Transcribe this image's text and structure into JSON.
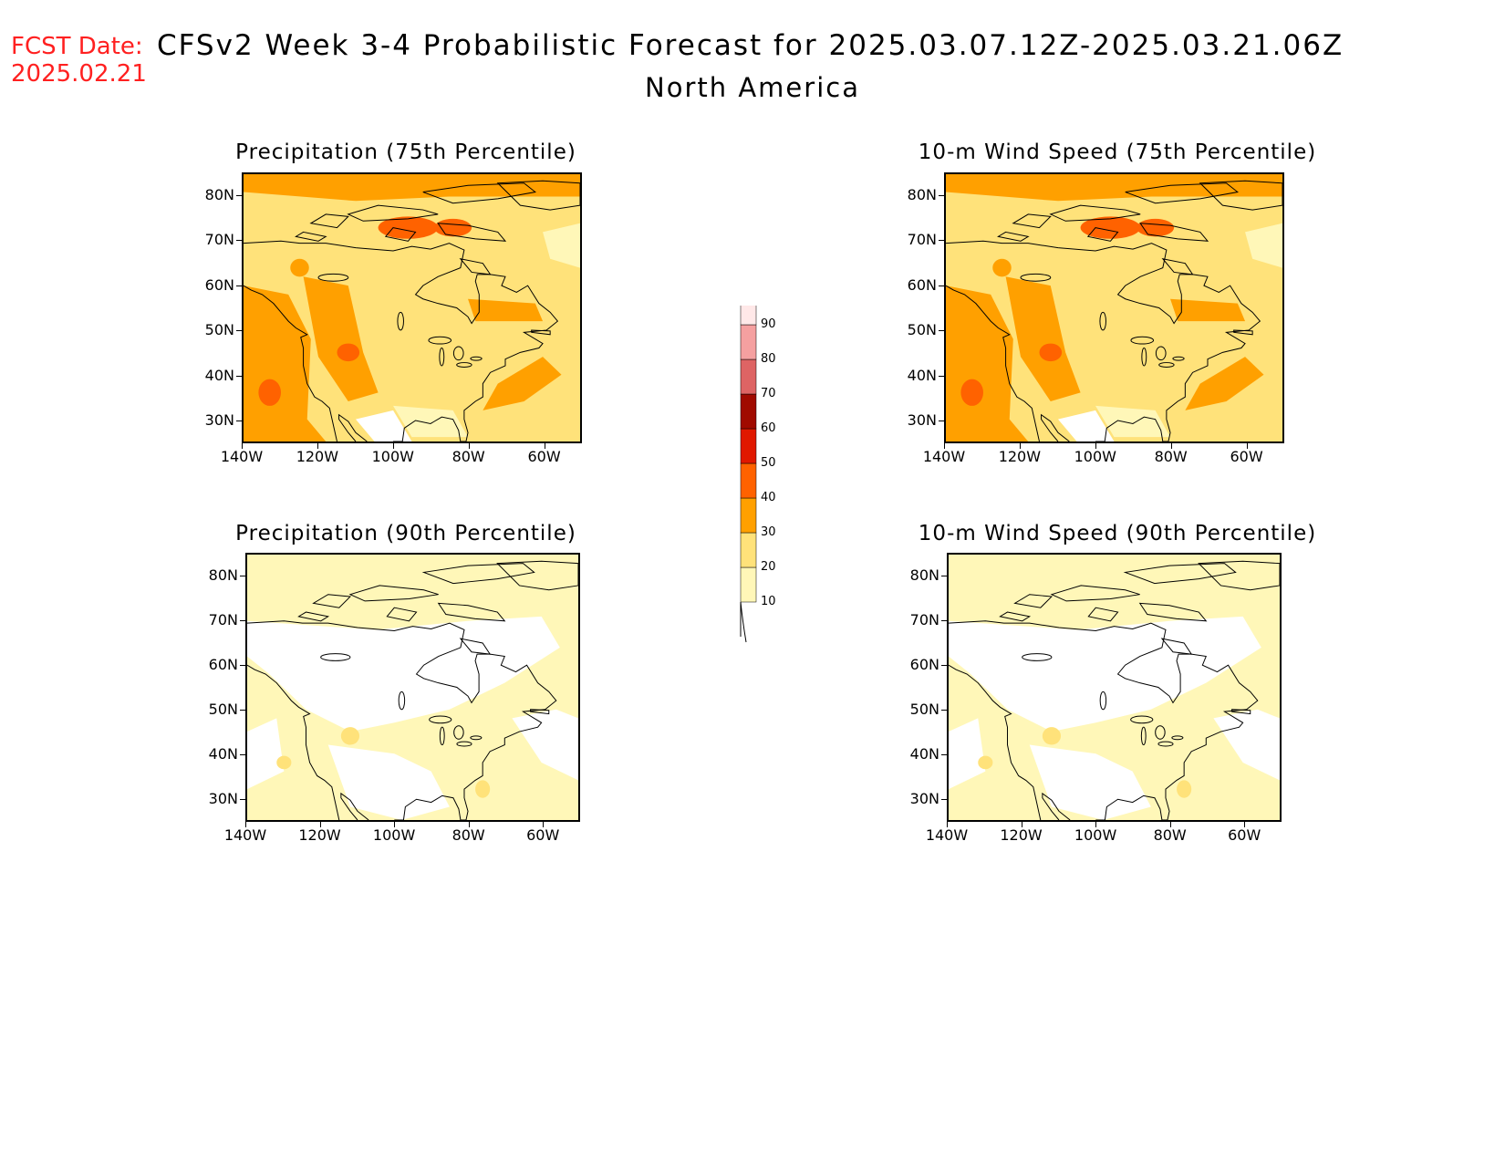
{
  "header": {
    "fcst_label": "FCST Date:",
    "fcst_date": "2025.02.21",
    "title": "CFSv2 Week 3-4 Probabilistic Forecast for 2025.03.07.12Z-2025.03.21.06Z",
    "region": "North America"
  },
  "axes": {
    "lat_labels": [
      "80N",
      "70N",
      "60N",
      "50N",
      "40N",
      "30N"
    ],
    "lon_labels": [
      "140W",
      "120W",
      "100W",
      "80W",
      "60W"
    ]
  },
  "panels": [
    {
      "id": "precip-75",
      "title": "Precipitation (75th Percentile)",
      "intensity": "high"
    },
    {
      "id": "wind-75",
      "title": "10-m Wind Speed (75th Percentile)",
      "intensity": "high"
    },
    {
      "id": "precip-90",
      "title": "Precipitation (90th Percentile)",
      "intensity": "low"
    },
    {
      "id": "wind-90",
      "title": "10-m Wind Speed (90th Percentile)",
      "intensity": "low"
    }
  ],
  "colorbar": {
    "levels": [
      {
        "value": "10",
        "color": "#fff7b8"
      },
      {
        "value": "20",
        "color": "#ffe27a"
      },
      {
        "value": "30",
        "color": "#ffa000"
      },
      {
        "value": "40",
        "color": "#ff6200"
      },
      {
        "value": "50",
        "color": "#e01800"
      },
      {
        "value": "60",
        "color": "#a00a00"
      },
      {
        "value": "70",
        "color": "#de6464"
      },
      {
        "value": "80",
        "color": "#f5a0a0"
      },
      {
        "value": "90",
        "color": "#ffe8e8"
      }
    ]
  }
}
